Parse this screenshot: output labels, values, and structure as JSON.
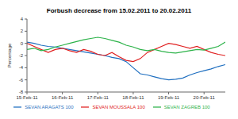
{
  "chart_data": {
    "type": "line",
    "title": "Forbush decrease from 15.02.2011 to 20.02.2011",
    "y_label": "Percentage",
    "x": [
      0,
      0.2,
      0.4,
      0.6,
      0.8,
      1.0,
      1.2,
      1.4,
      1.6,
      1.8,
      2.0,
      2.2,
      2.4,
      2.6,
      2.8,
      3.0,
      3.2,
      3.4,
      3.6,
      3.8,
      4.0,
      4.2,
      4.4,
      4.6,
      4.8,
      5.0,
      5.2,
      5.4,
      5.6
    ],
    "xlim": [
      0,
      5.6
    ],
    "xticks": [
      {
        "value": 0,
        "label": "15-Feb-11"
      },
      {
        "value": 1,
        "label": "16-Feb-11"
      },
      {
        "value": 2,
        "label": "17-Feb-11"
      },
      {
        "value": 3,
        "label": "18-Feb-11"
      },
      {
        "value": 4,
        "label": "19-Feb-11"
      },
      {
        "value": 5,
        "label": "20-Feb-11"
      }
    ],
    "ylim": [
      -8,
      4
    ],
    "yticks": [
      -8,
      -6,
      -4,
      -2,
      0,
      2,
      4
    ],
    "grid": false,
    "legend": "bottom",
    "series": [
      {
        "name": "SEVAN ARAGATS 100",
        "color": "#1f6fc0",
        "values": [
          0.2,
          0,
          -0.3,
          -0.5,
          -0.6,
          -0.8,
          -1.0,
          -1.2,
          -1.4,
          -1.6,
          -1.8,
          -2.0,
          -2.3,
          -2.5,
          -3.0,
          -4.0,
          -5.0,
          -5.2,
          -5.5,
          -5.8,
          -6.0,
          -5.9,
          -5.7,
          -5.2,
          -4.8,
          -4.5,
          -4.2,
          -3.8,
          -3.5
        ]
      },
      {
        "name": "SEVAN MOUSSALA 100",
        "color": "#e02020",
        "values": [
          0,
          -0.5,
          -1.0,
          -1.5,
          -1.0,
          -0.8,
          -1.2,
          -1.5,
          -1.0,
          -1.3,
          -1.8,
          -2.0,
          -1.5,
          -2.2,
          -2.8,
          -3.0,
          -2.5,
          -1.5,
          -1.0,
          -0.5,
          0,
          -0.2,
          -0.5,
          -0.8,
          -0.5,
          -1.0,
          -1.5,
          -1.8,
          -2.0
        ]
      },
      {
        "name": "SEVAN ZAGREB 100",
        "color": "#2db34a",
        "values": [
          -1.0,
          -0.8,
          -1.2,
          -1.0,
          -0.6,
          -0.3,
          0,
          0.3,
          0.6,
          0.8,
          1.0,
          0.8,
          0.5,
          0.2,
          -0.3,
          -0.6,
          -1.0,
          -1.2,
          -1.0,
          -1.3,
          -1.5,
          -1.6,
          -1.4,
          -1.2,
          -1.0,
          -1.1,
          -0.8,
          -0.5,
          0.2
        ]
      }
    ]
  }
}
